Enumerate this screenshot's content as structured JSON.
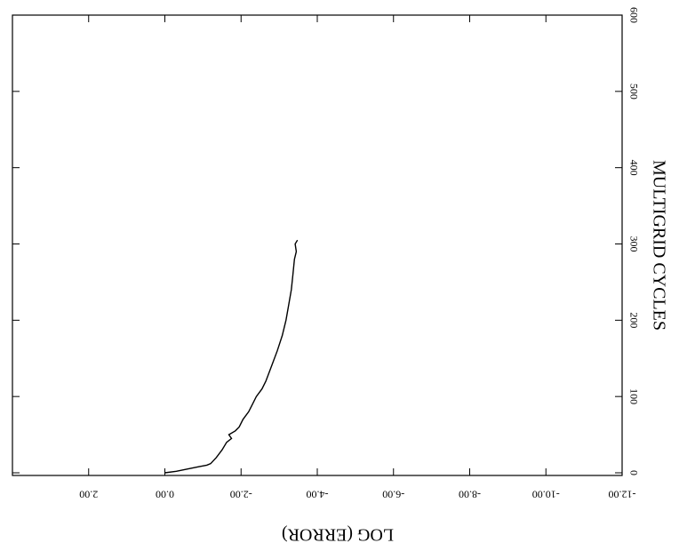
{
  "chart_data": {
    "type": "line",
    "x_label": "MULTIGRID CYCLES",
    "y_label": "LOG (ERROR)",
    "x": [
      0,
      2,
      5,
      8,
      10,
      12,
      20,
      30,
      40,
      45,
      50,
      55,
      60,
      70,
      80,
      90,
      100,
      110,
      120,
      140,
      160,
      180,
      200,
      220,
      240,
      260,
      280,
      290,
      300,
      305
    ],
    "values": [
      0,
      -0.3,
      -0.6,
      -0.9,
      -1.1,
      -1.2,
      -1.35,
      -1.5,
      -1.62,
      -1.75,
      -1.68,
      -1.85,
      -1.95,
      -2.05,
      -2.2,
      -2.3,
      -2.4,
      -2.55,
      -2.65,
      -2.8,
      -2.95,
      -3.08,
      -3.18,
      -3.25,
      -3.32,
      -3.36,
      -3.4,
      -3.45,
      -3.42,
      -3.48
    ],
    "color": "#000000",
    "xlim": [
      0,
      600
    ],
    "xticks": [
      0,
      100,
      200,
      300,
      400,
      500,
      600
    ],
    "ylim": [
      -12,
      4
    ],
    "yticks": [
      {
        "value": 2,
        "label": "2.00"
      },
      {
        "value": 0,
        "label": "0.00"
      },
      {
        "value": -2,
        "label": "-2.00"
      },
      {
        "value": -4,
        "label": "-4.00"
      },
      {
        "value": -6,
        "label": "-6.00"
      },
      {
        "value": -8,
        "label": "-8.00"
      },
      {
        "value": -10,
        "label": "-10.00"
      },
      {
        "value": -12,
        "label": "-12.00"
      }
    ]
  }
}
